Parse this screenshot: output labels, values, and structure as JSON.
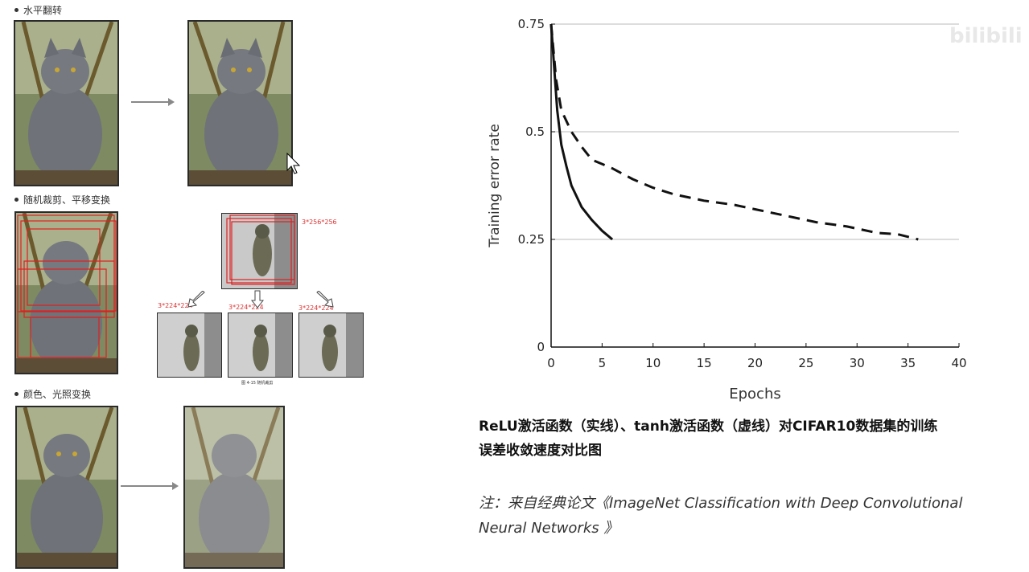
{
  "left": {
    "section1_label": "水平翻转",
    "section2_label": "随机裁剪、平移变换",
    "section3_label": "颜色、光照变换",
    "crop_big_label": "3*256*256",
    "crop_small_labels": [
      "3*224*224",
      "3*224*224",
      "3*224*224"
    ],
    "crop_figure_caption": "图 4-15 随机裁剪"
  },
  "watermark": "bilibili",
  "caption": {
    "line1": "ReLU激活函数（实线）、tanh激活函数（虚线）对CIFAR10数据集的训练",
    "line2": "误差收敛速度对比图"
  },
  "note": {
    "line1": "注：来自经典论文《ImageNet Classification with Deep Convolutional",
    "line2": "Neural Networks 》"
  },
  "chart_data": {
    "type": "line",
    "xlabel": "Epochs",
    "ylabel": "Training error rate",
    "xlim": [
      0,
      40
    ],
    "ylim": [
      0,
      0.75
    ],
    "xticks": [
      "0",
      "5",
      "10",
      "15",
      "20",
      "25",
      "30",
      "35",
      "40"
    ],
    "yticks": [
      "0",
      "0.25",
      "0.5",
      "0.75"
    ],
    "grid": "horizontal",
    "series": [
      {
        "style": "solid",
        "x": [
          0,
          0.3,
          0.6,
          1,
          1.5,
          2,
          3,
          4,
          5,
          6
        ],
        "y": [
          0.75,
          0.65,
          0.55,
          0.47,
          0.42,
          0.375,
          0.325,
          0.295,
          0.27,
          0.25
        ]
      },
      {
        "style": "dashed",
        "x": [
          0,
          0.5,
          1,
          2,
          3,
          4,
          6,
          8,
          10,
          12,
          15,
          18,
          20,
          23,
          26,
          29,
          32,
          34,
          36
        ],
        "y": [
          0.75,
          0.62,
          0.55,
          0.5,
          0.465,
          0.435,
          0.415,
          0.39,
          0.37,
          0.355,
          0.34,
          0.33,
          0.32,
          0.305,
          0.29,
          0.28,
          0.265,
          0.262,
          0.25
        ]
      }
    ]
  }
}
